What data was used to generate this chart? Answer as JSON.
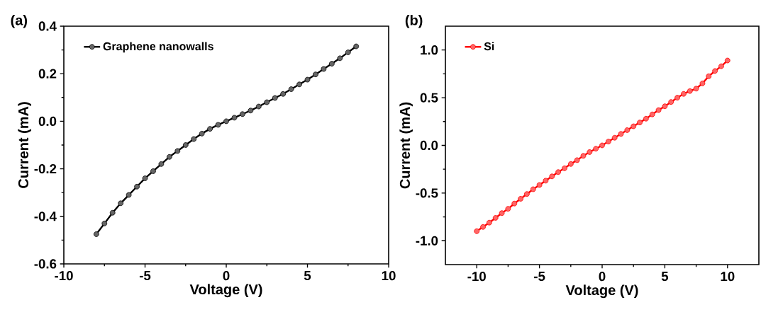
{
  "chart_data": [
    {
      "type": "line",
      "title": "(a)",
      "xlabel": "Voltage (V)",
      "ylabel": "Current (mA)",
      "xlim": [
        -10,
        10
      ],
      "ylim": [
        -0.6,
        0.4
      ],
      "xticks": [
        -10,
        -5,
        0,
        5,
        10
      ],
      "yticks": [
        -0.6,
        -0.4,
        -0.2,
        {
          "value": 0,
          "label": "0.0"
        },
        0.2,
        0.4
      ],
      "marker": "circle",
      "legend": "top left",
      "x": [
        -8,
        -7.5,
        -7,
        -6.5,
        -6,
        -5.5,
        -5,
        -4.5,
        -4,
        -3.5,
        -3,
        -2.5,
        -2,
        -1.5,
        -1,
        -0.5,
        0,
        0.5,
        1,
        1.5,
        2,
        2.5,
        3,
        3.5,
        4,
        4.5,
        5,
        5.5,
        6,
        6.5,
        7,
        7.5,
        8
      ],
      "series": [
        {
          "name": "Graphene nanowalls",
          "color": "#000000",
          "values": [
            -0.475,
            -0.43,
            -0.385,
            -0.345,
            -0.31,
            -0.275,
            -0.24,
            -0.21,
            -0.18,
            -0.15,
            -0.125,
            -0.1,
            -0.075,
            -0.052,
            -0.032,
            -0.015,
            0,
            0.015,
            0.03,
            0.045,
            0.062,
            0.08,
            0.098,
            0.115,
            0.135,
            0.155,
            0.175,
            0.197,
            0.22,
            0.242,
            0.265,
            0.29,
            0.315
          ]
        }
      ]
    },
    {
      "type": "line",
      "title": "(b)",
      "xlabel": "Voltage (V)",
      "ylabel": "Current (mA)",
      "xlim": [
        -12.5,
        12.5
      ],
      "ylim": [
        -1.25,
        1.25
      ],
      "xticks": [
        -10,
        -5,
        0,
        5,
        10
      ],
      "yticks": [
        {
          "value": -1,
          "label": "-1.0"
        },
        -0.5,
        {
          "value": 0,
          "label": "0.0"
        },
        0.5,
        {
          "value": 1,
          "label": "1.0"
        }
      ],
      "marker": "circle",
      "legend": "top left",
      "x": [
        -10,
        -9.5,
        -9,
        -8.5,
        -8,
        -7.5,
        -7,
        -6.5,
        -6,
        -5.5,
        -5,
        -4.5,
        -4,
        -3.5,
        -3,
        -2.5,
        -2,
        -1.5,
        -1,
        -0.5,
        0,
        0.5,
        1,
        1.5,
        2,
        2.5,
        3,
        3.5,
        4,
        4.5,
        5,
        5.5,
        6,
        6.5,
        7,
        7.5,
        8,
        8.5,
        9,
        9.5,
        10
      ],
      "series": [
        {
          "name": "Si",
          "color": "#ff0000",
          "values": [
            -0.9,
            -0.855,
            -0.81,
            -0.76,
            -0.71,
            -0.665,
            -0.61,
            -0.56,
            -0.51,
            -0.46,
            -0.415,
            -0.37,
            -0.325,
            -0.28,
            -0.24,
            -0.195,
            -0.155,
            -0.11,
            -0.07,
            -0.035,
            0,
            0.04,
            0.08,
            0.12,
            0.16,
            0.2,
            0.24,
            0.28,
            0.325,
            0.37,
            0.41,
            0.455,
            0.5,
            0.54,
            0.57,
            0.595,
            0.65,
            0.725,
            0.78,
            0.83,
            0.89
          ]
        }
      ]
    }
  ]
}
